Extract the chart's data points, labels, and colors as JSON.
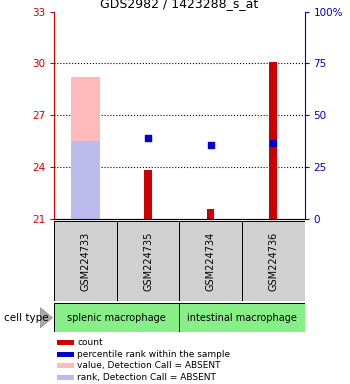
{
  "title": "GDS2982 / 1423288_s_at",
  "samples": [
    "GSM224733",
    "GSM224735",
    "GSM224734",
    "GSM224736"
  ],
  "group_labels": [
    "splenic macrophage",
    "intestinal macrophage"
  ],
  "ylim_left": [
    21,
    33
  ],
  "ylim_right": [
    0,
    100
  ],
  "yticks_left": [
    21,
    24,
    27,
    30,
    33
  ],
  "yticks_right": [
    0,
    25,
    50,
    75,
    100
  ],
  "ytick_right_labels": [
    "0",
    "25",
    "50",
    "75",
    "100%"
  ],
  "bar_base": 21,
  "count_values": [
    null,
    23.8,
    21.55,
    30.1
  ],
  "absent_value_bars": [
    29.2,
    null,
    null,
    null
  ],
  "absent_value_color": "#ffbbbb",
  "absent_rank_bars": [
    25.5,
    null,
    null,
    null
  ],
  "absent_rank_color": "#bbbbee",
  "percentile_ranks_left_scale": [
    null,
    25.7,
    25.3,
    25.4
  ],
  "percentile_rank_color": "#0000cc",
  "count_color": "#cc0000",
  "left_axis_color": "#cc0000",
  "right_axis_color": "#0000cc",
  "cell_type_label": "cell type",
  "group_bg_color": "#88ee88",
  "sample_bg_color": "#d0d0d0",
  "legend_items": [
    {
      "label": "count",
      "color": "#cc0000"
    },
    {
      "label": "percentile rank within the sample",
      "color": "#0000cc"
    },
    {
      "label": "value, Detection Call = ABSENT",
      "color": "#ffbbbb"
    },
    {
      "label": "rank, Detection Call = ABSENT",
      "color": "#bbbbee"
    }
  ]
}
